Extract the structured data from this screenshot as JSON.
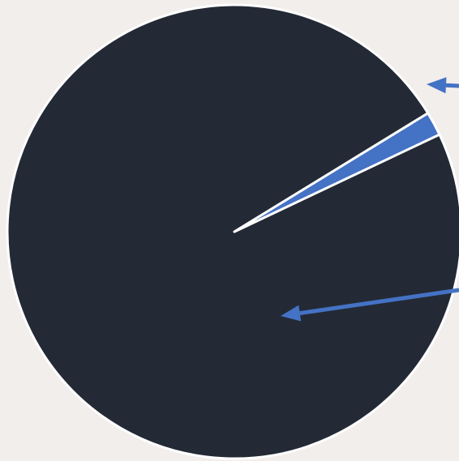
{
  "colors": {
    "background": "#f2eeec",
    "outline": "#ffffff",
    "primary_slice": "#232a35",
    "secondary_slice": "#4472c4",
    "arrow": "#4472c4"
  },
  "chart_data": {
    "type": "pie",
    "title": "",
    "legend": "none",
    "grid": false,
    "slices": [
      {
        "value": 98.3,
        "color": "#232a35"
      },
      {
        "value": 1.7,
        "color": "#4472c4"
      }
    ],
    "annotations": [
      {
        "kind": "arrow",
        "points_to": "slice-1"
      },
      {
        "kind": "arrow",
        "points_to": "slice-0"
      }
    ]
  }
}
